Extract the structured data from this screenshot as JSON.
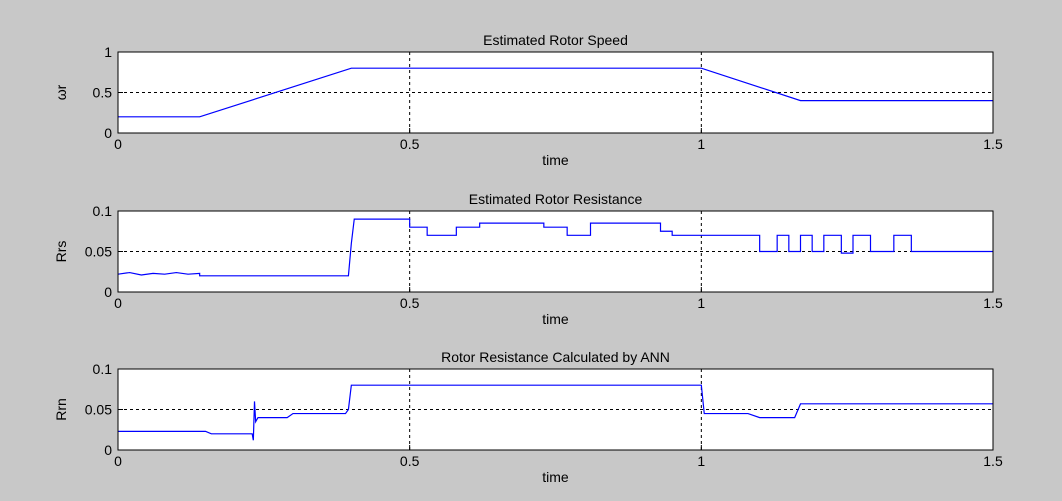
{
  "chart_data": [
    {
      "type": "line",
      "title": "Estimated Rotor Speed",
      "x_label": "time",
      "y_label": "ωr",
      "color": "#0000ff",
      "grid": true,
      "x": [
        0,
        0.14,
        0.4,
        1.0,
        1.17,
        1.5
      ],
      "values": [
        0.2,
        0.2,
        0.8,
        0.8,
        0.4,
        0.4
      ],
      "xlim": [
        0,
        1.5
      ],
      "xticks": [
        0,
        0.5,
        1,
        1.5
      ],
      "ylim": [
        0,
        1
      ],
      "yticks": [
        0,
        0.5,
        1
      ]
    },
    {
      "type": "line",
      "title": "Estimated Rotor Resistance",
      "x_label": "time",
      "y_label": "Rrs",
      "color": "#0000ff",
      "grid": true,
      "x": [
        0,
        0.02,
        0.04,
        0.06,
        0.08,
        0.1,
        0.12,
        0.14,
        0.14,
        0.395,
        0.4,
        0.405,
        0.5,
        0.5,
        0.53,
        0.53,
        0.58,
        0.58,
        0.62,
        0.62,
        0.73,
        0.73,
        0.77,
        0.77,
        0.81,
        0.81,
        0.93,
        0.93,
        0.95,
        0.95,
        1.1,
        1.1,
        1.13,
        1.13,
        1.15,
        1.15,
        1.17,
        1.17,
        1.19,
        1.19,
        1.21,
        1.21,
        1.24,
        1.24,
        1.26,
        1.26,
        1.29,
        1.29,
        1.33,
        1.33,
        1.36,
        1.36,
        1.5
      ],
      "values": [
        0.022,
        0.024,
        0.021,
        0.023,
        0.022,
        0.024,
        0.022,
        0.023,
        0.02,
        0.02,
        0.06,
        0.09,
        0.09,
        0.08,
        0.08,
        0.07,
        0.07,
        0.08,
        0.08,
        0.085,
        0.085,
        0.08,
        0.08,
        0.07,
        0.07,
        0.085,
        0.085,
        0.075,
        0.075,
        0.07,
        0.07,
        0.05,
        0.05,
        0.07,
        0.07,
        0.05,
        0.05,
        0.07,
        0.07,
        0.05,
        0.05,
        0.07,
        0.07,
        0.048,
        0.048,
        0.07,
        0.07,
        0.05,
        0.05,
        0.07,
        0.07,
        0.05,
        0.05
      ],
      "xlim": [
        0,
        1.5
      ],
      "xticks": [
        0,
        0.5,
        1,
        1.5
      ],
      "ylim": [
        0,
        0.1
      ],
      "yticks": [
        0,
        0.05,
        0.1
      ]
    },
    {
      "type": "line",
      "title": "Rotor Resistance Calculated by ANN",
      "x_label": "time",
      "y_label": "Rrn",
      "color": "#0000ff",
      "grid": true,
      "x": [
        0,
        0.15,
        0.16,
        0.23,
        0.232,
        0.234,
        0.236,
        0.24,
        0.29,
        0.3,
        0.39,
        0.395,
        0.4,
        1.0,
        1.005,
        1.08,
        1.1,
        1.16,
        1.17,
        1.5
      ],
      "values": [
        0.023,
        0.023,
        0.02,
        0.02,
        0.012,
        0.06,
        0.035,
        0.04,
        0.04,
        0.045,
        0.045,
        0.05,
        0.08,
        0.08,
        0.045,
        0.045,
        0.04,
        0.04,
        0.057,
        0.057
      ],
      "xlim": [
        0,
        1.5
      ],
      "xticks": [
        0,
        0.5,
        1,
        1.5
      ],
      "ylim": [
        0,
        0.1
      ],
      "yticks": [
        0,
        0.05,
        0.1
      ]
    }
  ]
}
